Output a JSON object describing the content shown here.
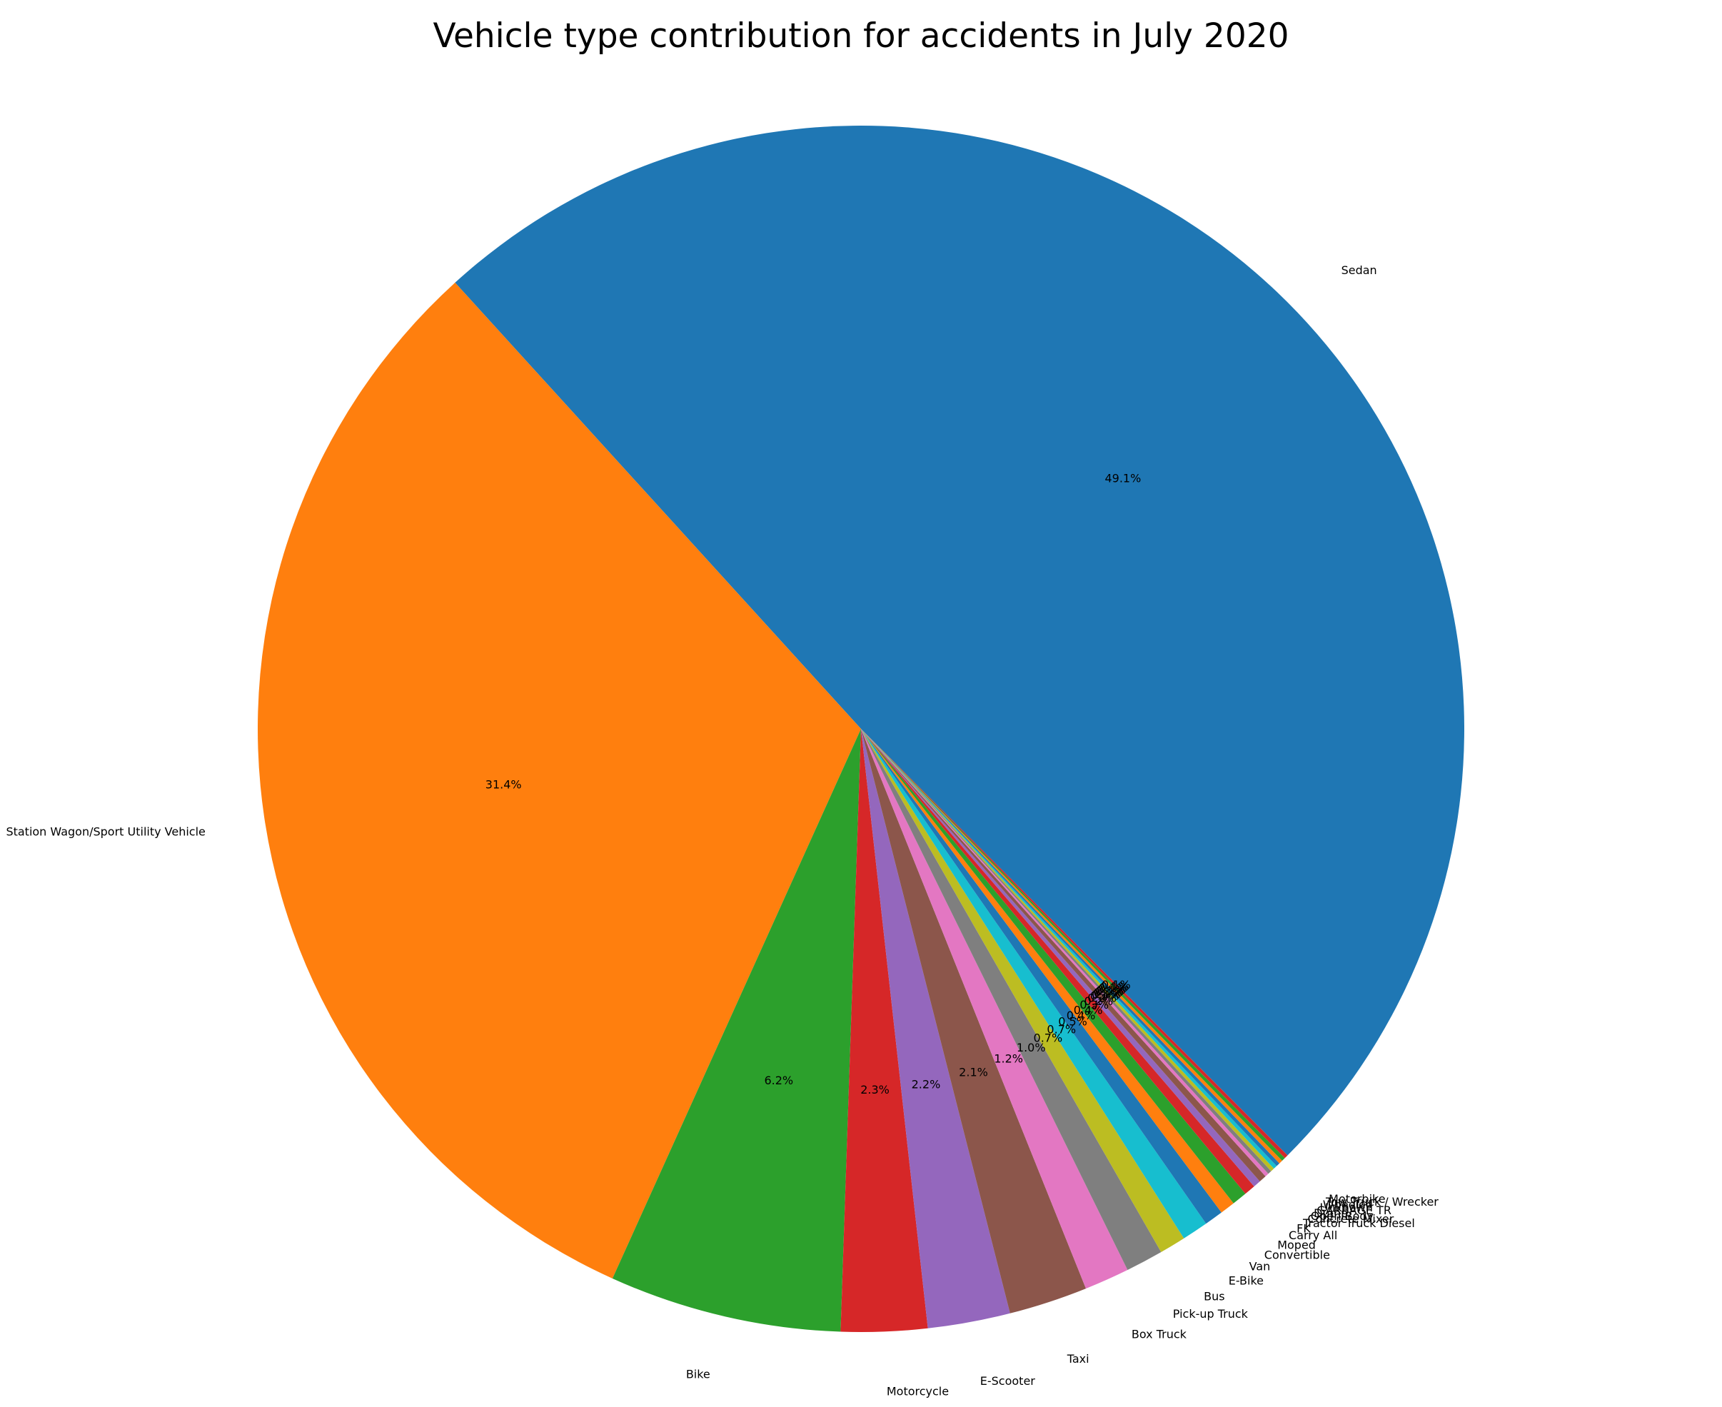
{
  "chart_data": {
    "type": "pie",
    "title": "Vehicle type contribution for accidents in July 2020",
    "start_angle_deg": 315,
    "direction": "counterclockwise",
    "slices": [
      {
        "label": "Sedan",
        "value": 49.1,
        "pct_label": "49.1%",
        "color": "#1f77b4"
      },
      {
        "label": "Station Wagon/Sport Utility Vehicle",
        "value": 31.4,
        "pct_label": "31.4%",
        "color": "#ff7f0e"
      },
      {
        "label": "Bike",
        "value": 6.2,
        "pct_label": "6.2%",
        "color": "#2ca02c"
      },
      {
        "label": "Motorcycle",
        "value": 2.3,
        "pct_label": "2.3%",
        "color": "#d62728"
      },
      {
        "label": "E-Scooter",
        "value": 2.2,
        "pct_label": "2.2%",
        "color": "#9467bd"
      },
      {
        "label": "Taxi",
        "value": 2.1,
        "pct_label": "2.1%",
        "color": "#8c564b"
      },
      {
        "label": "Box Truck",
        "value": 1.2,
        "pct_label": "1.2%",
        "color": "#e377c2"
      },
      {
        "label": "Pick-up Truck",
        "value": 1.0,
        "pct_label": "1.0%",
        "color": "#7f7f7f"
      },
      {
        "label": "Bus",
        "value": 0.7,
        "pct_label": "0.7%",
        "color": "#bcbd22"
      },
      {
        "label": "E-Bike",
        "value": 0.7,
        "pct_label": "0.7%",
        "color": "#17becf"
      },
      {
        "label": "Van",
        "value": 0.5,
        "pct_label": "0.5%",
        "color": "#1f77b4"
      },
      {
        "label": "Convertible",
        "value": 0.4,
        "pct_label": "0.4%",
        "color": "#ff7f0e"
      },
      {
        "label": "Moped",
        "value": 0.4,
        "pct_label": "0.4%",
        "color": "#2ca02c"
      },
      {
        "label": "Carry All",
        "value": 0.3,
        "pct_label": "0.3%",
        "color": "#d62728"
      },
      {
        "label": "FK",
        "value": 0.2,
        "pct_label": "0.2%",
        "color": "#9467bd"
      },
      {
        "label": "Tractor Truck Diesel",
        "value": 0.2,
        "pct_label": "0.2%",
        "color": "#8c564b"
      },
      {
        "label": "Concrete Mixer",
        "value": 0.1,
        "pct_label": "0.1%",
        "color": "#e377c2"
      },
      {
        "label": "Open Body",
        "value": 0.1,
        "pct_label": "0.1%",
        "color": "#7f7f7f"
      },
      {
        "label": "Dump",
        "value": 0.1,
        "pct_label": "0.1%",
        "color": "#bcbd22"
      },
      {
        "label": "GARBAGE TR",
        "value": 0.1,
        "pct_label": "0.1%",
        "color": "#17becf"
      },
      {
        "label": "Unknown",
        "value": 0.1,
        "pct_label": "0.1%",
        "color": "#1f77b4"
      },
      {
        "label": "Wheeled",
        "value": 0.1,
        "pct_label": "0.1%",
        "color": "#ff7f0e"
      },
      {
        "label": "Tow Truck / Wrecker",
        "value": 0.1,
        "pct_label": "0.1%",
        "color": "#2ca02c"
      },
      {
        "label": "Motorbike",
        "value": 0.1,
        "pct_label": "0.1%",
        "color": "#d62728"
      }
    ]
  }
}
